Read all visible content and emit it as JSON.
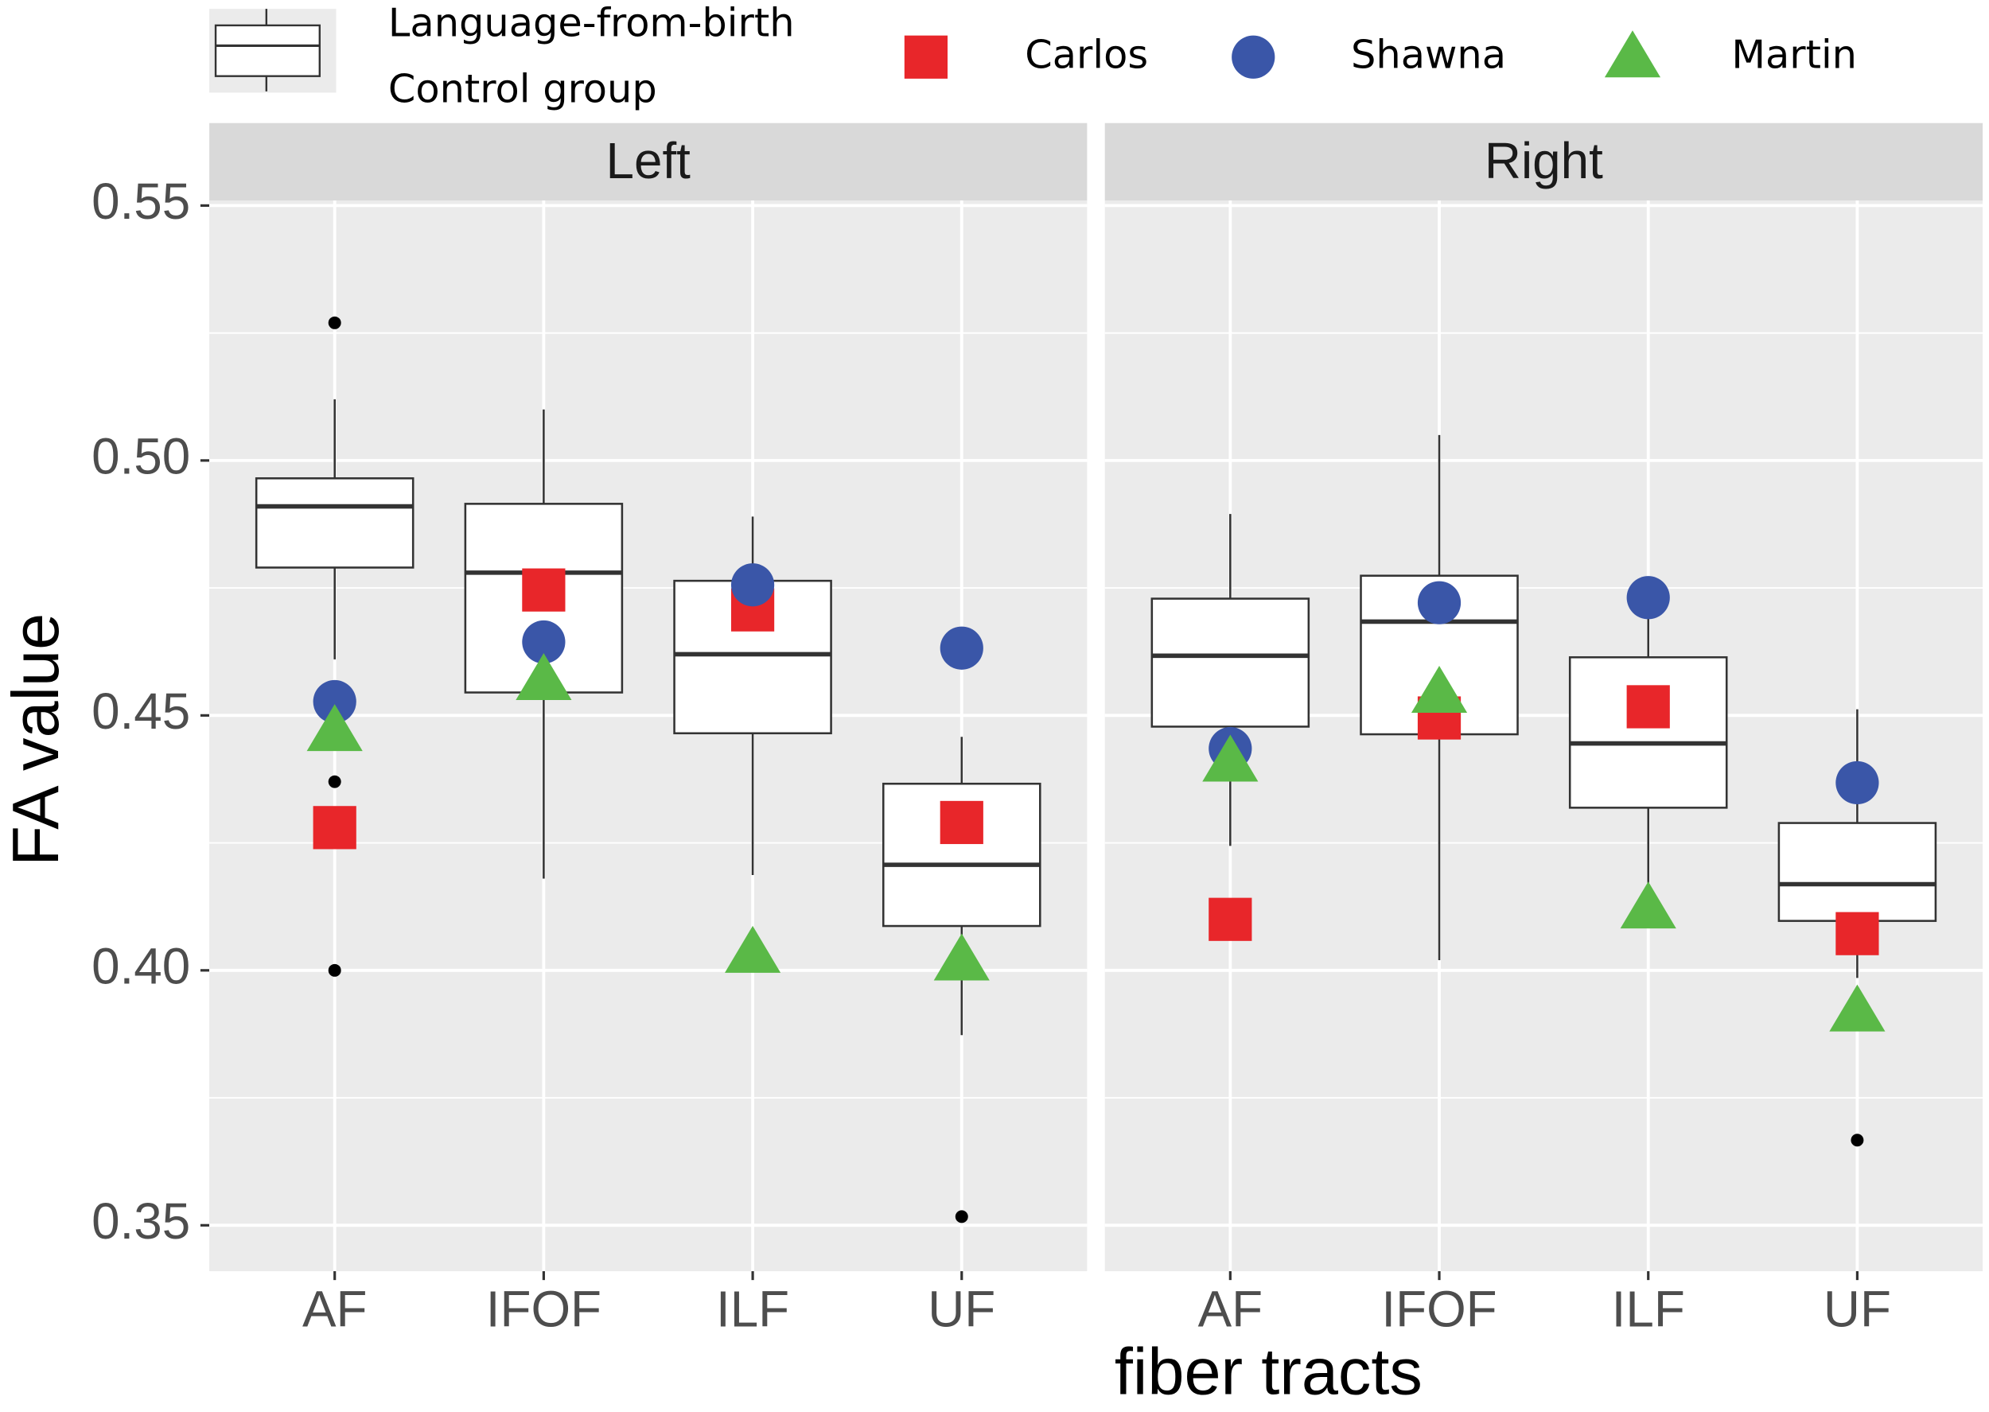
{
  "chart_data": {
    "type": "box",
    "y_label": "FA value",
    "x_label": "fiber tracts",
    "box_legend": [
      "Language-from-birth",
      "Control group"
    ],
    "ylim": [
      0.341,
      0.551
    ],
    "yticks": [
      0.35,
      {
        "value": 0.4,
        "label": "0.40"
      },
      0.45,
      {
        "value": 0.5,
        "label": "0.50"
      },
      0.55
    ],
    "grid": true,
    "box_color": "#333333",
    "panel_color": "#ebebeb",
    "strip_color": "#d9d9d9",
    "facets": [
      {
        "title": "Left",
        "categories": [
          "AF",
          "IFOF",
          "ILF",
          "UF"
        ],
        "boxes": [
          {
            "whislo": 0.461,
            "q1": 0.479,
            "med": 0.491,
            "q3": 0.4965,
            "whishi": 0.512,
            "fliers": [
              0.527,
              0.437,
              0.4
            ]
          },
          {
            "whislo": 0.418,
            "q1": 0.4545,
            "med": 0.478,
            "q3": 0.4915,
            "whishi": 0.51,
            "fliers": []
          },
          {
            "whislo": 0.4187,
            "q1": 0.4465,
            "med": 0.462,
            "q3": 0.4764,
            "whishi": 0.489,
            "fliers": []
          },
          {
            "whislo": 0.3873,
            "q1": 0.4087,
            "med": 0.4207,
            "q3": 0.4366,
            "whishi": 0.4458,
            "fliers": [
              0.3517
            ]
          }
        ]
      },
      {
        "title": "Right",
        "categories": [
          "AF",
          "IFOF",
          "ILF",
          "UF"
        ],
        "boxes": [
          {
            "whislo": 0.4244,
            "q1": 0.4478,
            "med": 0.4617,
            "q3": 0.4729,
            "whishi": 0.4895,
            "fliers": []
          },
          {
            "whislo": 0.402,
            "q1": 0.4463,
            "med": 0.4684,
            "q3": 0.4774,
            "whishi": 0.505,
            "fliers": []
          },
          {
            "whislo": 0.416,
            "q1": 0.4319,
            "med": 0.4445,
            "q3": 0.4614,
            "whishi": 0.473,
            "fliers": []
          },
          {
            "whislo": 0.3985,
            "q1": 0.4097,
            "med": 0.4169,
            "q3": 0.4289,
            "whishi": 0.4512,
            "fliers": [
              0.3667
            ]
          }
        ]
      }
    ],
    "series": [
      {
        "name": "Carlos",
        "color": "#e8262a",
        "marker": "square",
        "values": [
          [
            0.428,
            0.4746,
            0.4707,
            0.429
          ],
          [
            0.41,
            0.4495,
            0.4517,
            0.4072
          ]
        ]
      },
      {
        "name": "Shawna",
        "color": "#3a56a8",
        "marker": "circle",
        "values": [
          [
            0.4527,
            0.4644,
            0.4756,
            0.4632
          ],
          [
            0.4435,
            0.4721,
            0.4731,
            0.4368
          ]
        ]
      },
      {
        "name": "Martin",
        "color": "#5ab947",
        "marker": "triangle",
        "values": [
          [
            0.447,
            0.457,
            0.4035,
            0.402
          ],
          [
            0.441,
            0.4545,
            0.4122,
            0.392
          ]
        ]
      }
    ]
  }
}
